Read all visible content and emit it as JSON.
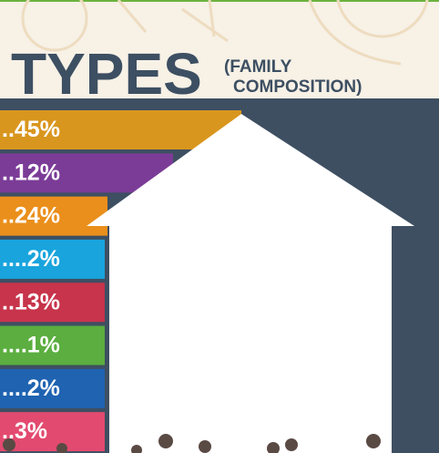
{
  "header": {
    "title": "TYPES",
    "subtitle_line1": "(FAMILY",
    "subtitle_line2": "COMPOSITION)"
  },
  "items": [
    {
      "text": "..45%",
      "color": "#d9961e"
    },
    {
      "text": "..12%",
      "color": "#7b3c97"
    },
    {
      "text": "..24%",
      "color": "#ea8f1b"
    },
    {
      "text": "....2%",
      "color": "#19a4dd"
    },
    {
      "text": "..13%",
      "color": "#c7344b"
    },
    {
      "text": "....1%",
      "color": "#5bae3f"
    },
    {
      "text": "....2%",
      "color": "#1f63b1"
    },
    {
      "text": "..3%",
      "color": "#e34a6f"
    }
  ]
}
